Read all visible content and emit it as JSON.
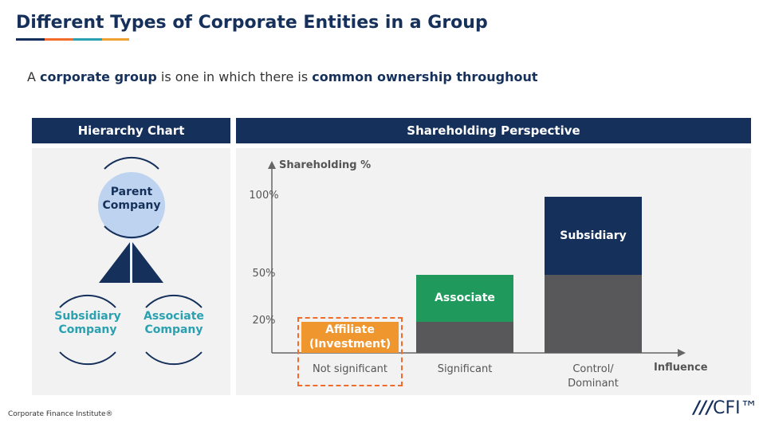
{
  "title": "Different Types of Corporate Entities in a Group",
  "accent_colors": [
    "#15305a",
    "#f26b2b",
    "#2aa0b0",
    "#f0a030"
  ],
  "subtitle": {
    "pre": "A ",
    "b1": "corporate group",
    "mid": " is one in which there is ",
    "b2": "common ownership throughout"
  },
  "hierarchy": {
    "header": "Hierarchy Chart",
    "parent": "Parent Company",
    "subsidiary": "Subsidiary Company",
    "associate": "Associate Company"
  },
  "shareholding": {
    "header": "Shareholding Perspective"
  },
  "chart_data": {
    "type": "bar",
    "ylabel": "Shareholding %",
    "xlabel": "Influence",
    "ylim": [
      0,
      100
    ],
    "yticks": [
      "20%",
      "50%",
      "100%"
    ],
    "ytick_values": [
      20,
      50,
      100
    ],
    "categories": [
      "Not significant",
      "Significant",
      "Control/ Dominant"
    ],
    "bars": [
      {
        "label": "Affiliate (Investment)",
        "base": 0,
        "top": 20,
        "color": "#f0962e",
        "dashed_outline": true
      },
      {
        "label": "",
        "base": 0,
        "top": 20,
        "color": "#58585b"
      },
      {
        "label": "Associate",
        "base": 20,
        "top": 50,
        "color": "#1f9a5c"
      },
      {
        "label": "",
        "base": 0,
        "top": 50,
        "color": "#58585b"
      },
      {
        "label": "Subsidiary",
        "base": 50,
        "top": 100,
        "color": "#15305a"
      }
    ],
    "bar_category_index": [
      0,
      1,
      1,
      2,
      2
    ]
  },
  "footer": "Corporate Finance Institute®",
  "logo": "CFI™"
}
